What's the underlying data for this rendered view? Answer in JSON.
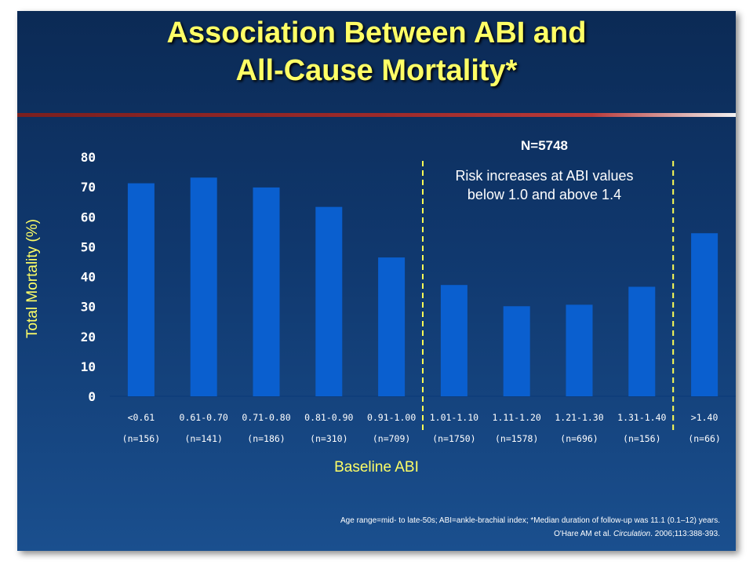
{
  "title_line1": "Association Between ABI and",
  "title_line2": "All-Cause Mortality*",
  "n_label": "N=5748",
  "risk_note": "Risk increases at ABI values below 1.0 and above 1.4",
  "footnote_line1": "Age range=mid- to late-50s; ABI=ankle-brachial index; *Median duration of follow-up was 11.1 (0.1–12) years.",
  "footnote_line2_pre": "O'Hare AM et al. ",
  "footnote_line2_journal": "Circulation",
  "footnote_line2_post": ". 2006;113:388-393.",
  "colors": {
    "bar": "#0a5fcf",
    "title": "#ffff66",
    "divider": "#ffff55"
  },
  "chart_data": {
    "type": "bar",
    "title": "Association Between ABI and All-Cause Mortality*",
    "xlabel": "Baseline ABI",
    "ylabel": "Total Mortality (%)",
    "ylim": [
      0,
      80
    ],
    "yticks": [
      0,
      10,
      20,
      30,
      40,
      50,
      60,
      70,
      80
    ],
    "grid": false,
    "categories": [
      "<0.61",
      "0.61-0.70",
      "0.71-0.80",
      "0.81-0.90",
      "0.91-1.00",
      "1.01-1.10",
      "1.11-1.20",
      "1.21-1.30",
      "1.31-1.40",
      ">1.40"
    ],
    "category_n": [
      "(n=156)",
      "(n=141)",
      "(n=186)",
      "(n=310)",
      "(n=709)",
      "(n=1750)",
      "(n=1578)",
      "(n=696)",
      "(n=156)",
      "(n=66)"
    ],
    "values": [
      71.2,
      73.1,
      69.8,
      63.3,
      46.4,
      37.2,
      30.1,
      30.6,
      36.6,
      54.5
    ],
    "reference_lines_between": [
      [
        4,
        5
      ],
      [
        8,
        9
      ]
    ]
  }
}
